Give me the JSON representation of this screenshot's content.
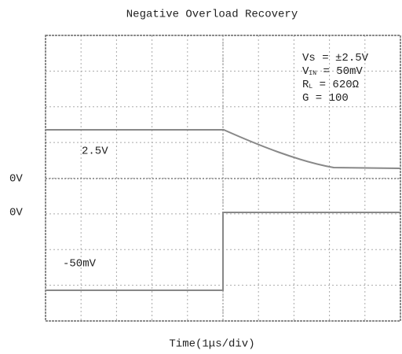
{
  "title": "Negative Overload Recovery",
  "x_label": "Time(1μs/div)",
  "channel_labels": [
    "0V",
    "0V"
  ],
  "trace_labels": [
    "2.5V",
    "-50mV"
  ],
  "conditions": [
    {
      "base": "Vs",
      "sub": "",
      "rest": " = ±2.5V"
    },
    {
      "base": "V",
      "sub": "IN",
      "rest": " = 50mV"
    },
    {
      "base": "R",
      "sub": "L",
      "rest": " = 620Ω"
    },
    {
      "base": "G",
      "sub": "",
      "rest": " = 100"
    }
  ]
}
